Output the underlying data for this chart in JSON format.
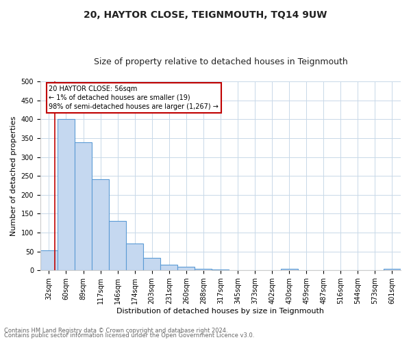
{
  "title": "20, HAYTOR CLOSE, TEIGNMOUTH, TQ14 9UW",
  "subtitle": "Size of property relative to detached houses in Teignmouth",
  "xlabel": "Distribution of detached houses by size in Teignmouth",
  "ylabel": "Number of detached properties",
  "footnote1": "Contains HM Land Registry data © Crown copyright and database right 2024.",
  "footnote2": "Contains public sector information licensed under the Open Government Licence v3.0.",
  "categories": [
    "32sqm",
    "60sqm",
    "89sqm",
    "117sqm",
    "146sqm",
    "174sqm",
    "203sqm",
    "231sqm",
    "260sqm",
    "288sqm",
    "317sqm",
    "345sqm",
    "373sqm",
    "402sqm",
    "430sqm",
    "459sqm",
    "487sqm",
    "516sqm",
    "544sqm",
    "573sqm",
    "601sqm"
  ],
  "values": [
    53,
    400,
    339,
    241,
    130,
    71,
    33,
    16,
    9,
    5,
    2,
    1,
    0,
    0,
    5,
    0,
    0,
    0,
    0,
    0,
    4
  ],
  "bar_color": "#c5d8f0",
  "bar_edge_color": "#5b9bd5",
  "marker_line_color": "#c00000",
  "annotation_text": "20 HAYTOR CLOSE: 56sqm\n← 1% of detached houses are smaller (19)\n98% of semi-detached houses are larger (1,267) →",
  "annotation_box_color": "#ffffff",
  "annotation_box_edge_color": "#c00000",
  "ylim": [
    0,
    500
  ],
  "yticks": [
    0,
    50,
    100,
    150,
    200,
    250,
    300,
    350,
    400,
    450,
    500
  ],
  "bg_color": "#ffffff",
  "grid_color": "#c8d8e8",
  "title_fontsize": 10,
  "subtitle_fontsize": 9,
  "ylabel_fontsize": 8,
  "xlabel_fontsize": 8,
  "tick_fontsize": 7,
  "footnote_fontsize": 6
}
